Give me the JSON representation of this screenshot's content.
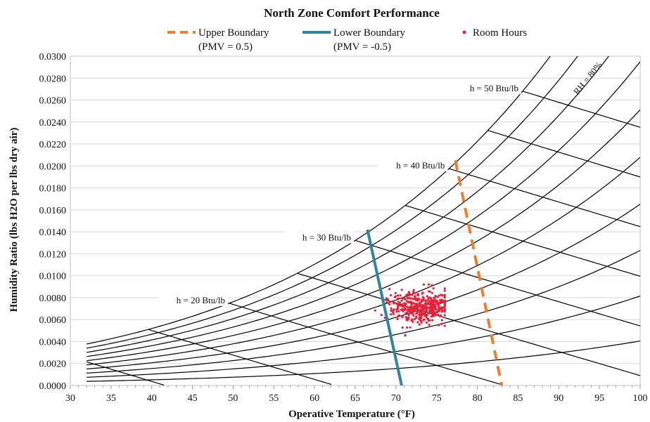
{
  "chart_data": {
    "type": "scatter",
    "title": "North Zone Comfort Performance",
    "xlabel": "Operative Temperature (°F)",
    "ylabel": "Humidity Ratio (lbs H2O per lbs dry air)",
    "xlim": [
      30,
      100
    ],
    "ylim": [
      0,
      0.03
    ],
    "x_ticks": [
      "30",
      "35",
      "40",
      "45",
      "50",
      "55",
      "60",
      "65",
      "70",
      "75",
      "80",
      "85",
      "90",
      "95",
      "100"
    ],
    "y_ticks": [
      "0.0000",
      "0.0020",
      "0.0040",
      "0.0060",
      "0.0080",
      "0.0100",
      "0.0120",
      "0.0140",
      "0.0160",
      "0.0180",
      "0.0200",
      "0.0220",
      "0.0240",
      "0.0260",
      "0.0280",
      "0.0300"
    ],
    "grid": true,
    "legend_position": "top",
    "legend": [
      {
        "line1": "Upper Boundary",
        "line2": "(PMV = 0.5)"
      },
      {
        "line1": "Lower Boundary",
        "line2": "(PMV = -0.5)"
      },
      {
        "line1": "Room Hours",
        "line2": ""
      }
    ],
    "colors": {
      "upper": "#ED7D31",
      "lower": "#31859C",
      "points": "#E8203A",
      "psychro": "#000000",
      "grid": "#D9D9D9"
    },
    "upper_boundary": {
      "x": [
        77.3,
        83.0
      ],
      "y": [
        0.0205,
        0.0
      ]
    },
    "lower_boundary": {
      "x": [
        66.5,
        70.7
      ],
      "y": [
        0.0142,
        0.0
      ]
    },
    "rh_curves": [
      10,
      20,
      30,
      40,
      50,
      60,
      70,
      80,
      90,
      100
    ],
    "rh_label": "RH = 80%",
    "enthalpy_lines": [
      {
        "h": 10
      },
      {
        "h": 15
      },
      {
        "h": 20,
        "label": "h = 20 Btu/lb"
      },
      {
        "h": 25
      },
      {
        "h": 30,
        "label": "h = 30 Btu/lb"
      },
      {
        "h": 35
      },
      {
        "h": 40,
        "label": "h = 40 Btu/lb"
      },
      {
        "h": 45
      },
      {
        "h": 50,
        "label": "h = 50 Btu/lb"
      }
    ],
    "room_hours_cluster": {
      "x_center": 73.0,
      "y_center": 0.0071,
      "x_spread": 1.8,
      "y_spread": 0.00075,
      "count": 420,
      "x_min": 66.5,
      "x_max": 76.0,
      "y_min": 0.0045,
      "y_max": 0.0092
    }
  }
}
